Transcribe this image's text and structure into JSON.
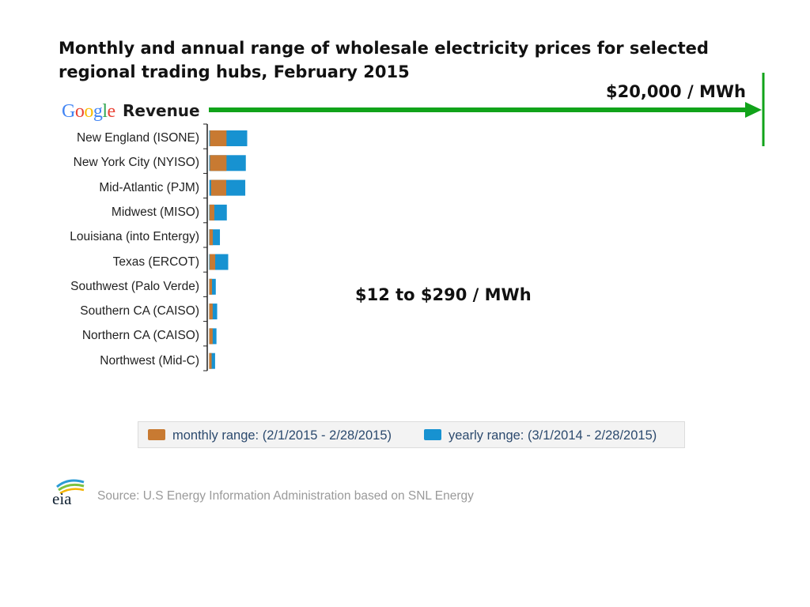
{
  "title_lines": [
    "Monthly and annual range of wholesale electricity prices for selected",
    "regional trading hubs, February 2015"
  ],
  "google_logo": {
    "letters": [
      "G",
      "o",
      "o",
      "g",
      "l",
      "e"
    ],
    "colors": [
      "#4285F4",
      "#EA4335",
      "#FBBC05",
      "#4285F4",
      "#34A853",
      "#EA4335"
    ]
  },
  "revenue_label": "Revenue",
  "top_annotation": "$20,000 / MWh",
  "mid_annotation": "$12 to $290 / MWh",
  "colors": {
    "monthly": "#c87a32",
    "yearly": "#1792d1",
    "arrow": "#11a31a"
  },
  "legend": {
    "monthly_label": "monthly range: (2/1/2015 - 2/28/2015)",
    "yearly_label": "yearly range: (3/1/2014 - 2/28/2015)"
  },
  "source": "Source: U.S Energy Information Administration based on SNL Energy",
  "logo_text": "eia",
  "chart_data": {
    "type": "bar",
    "title": "Monthly and annual range of wholesale electricity prices for selected regional trading hubs, February 2015",
    "categories": [
      "New England (ISONE)",
      "New York City (NYISO)",
      "Mid-Atlantic (PJM)",
      "Midwest (MISO)",
      "Louisiana (into Entergy)",
      "Texas (ERCOT)",
      "Southwest (Palo Verde)",
      "Southern CA (CAISO)",
      "Northern CA (CAISO)",
      "Northwest (Mid-C)"
    ],
    "series": [
      {
        "name": "monthly range: (2/1/2015 - 2/28/2015)",
        "ranges": [
          [
            40,
            160
          ],
          [
            40,
            160
          ],
          [
            80,
            190
          ],
          [
            25,
            60
          ],
          [
            20,
            45
          ],
          [
            30,
            70
          ],
          [
            15,
            35
          ],
          [
            15,
            40
          ],
          [
            15,
            40
          ],
          [
            12,
            30
          ]
        ]
      },
      {
        "name": "yearly range: (3/1/2014 - 2/28/2015)",
        "ranges": [
          [
            15,
            290
          ],
          [
            15,
            280
          ],
          [
            20,
            280
          ],
          [
            12,
            140
          ],
          [
            12,
            90
          ],
          [
            12,
            150
          ],
          [
            12,
            60
          ],
          [
            12,
            70
          ],
          [
            12,
            65
          ],
          [
            12,
            55
          ]
        ]
      }
    ],
    "annotations": [
      "$20,000 / MWh",
      "$12 to $290 / MWh"
    ],
    "xlim": [
      0,
      20000
    ],
    "xlabel": "",
    "ylabel": ""
  }
}
